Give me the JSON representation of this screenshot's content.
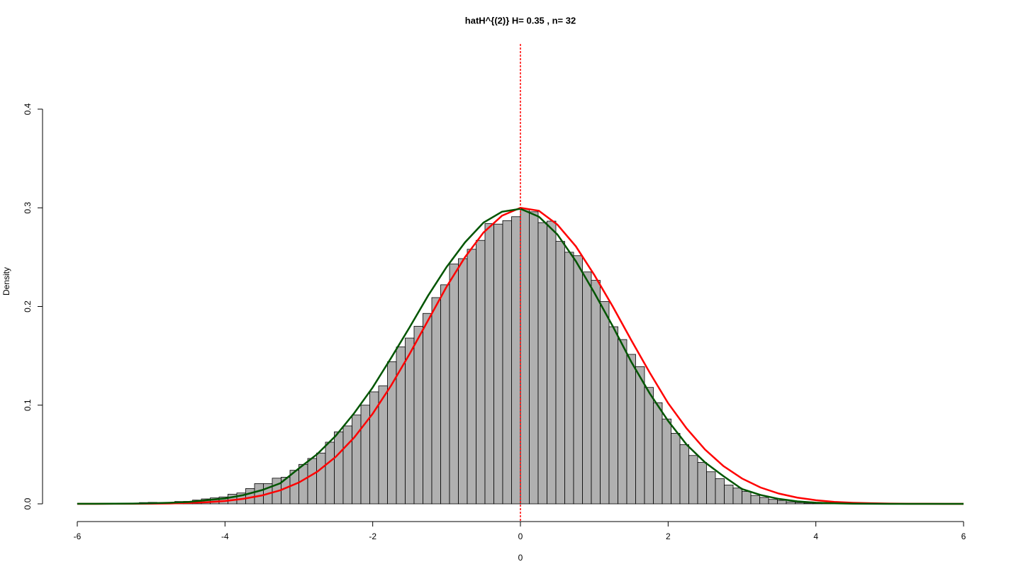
{
  "chart_data": {
    "type": "histogram",
    "title": "hatH^{(2)} H= 0.35 , n= 32",
    "xlabel": "0",
    "ylabel": "Density",
    "bins": [
      -6,
      -5.88,
      -5.76,
      -5.64,
      -5.52,
      -5.4,
      -5.28,
      -5.16,
      -5.04,
      -4.92,
      -4.8,
      -4.68,
      -4.56,
      -4.44,
      -4.32,
      -4.2,
      -4.08,
      -3.96,
      -3.84,
      -3.72,
      -3.6,
      -3.48,
      -3.36,
      -3.24,
      -3.12,
      -3,
      -2.88,
      -2.76,
      -2.64,
      -2.52,
      -2.4,
      -2.28,
      -2.16,
      -2.04,
      -1.92,
      -1.8,
      -1.68,
      -1.56,
      -1.44,
      -1.32,
      -1.2,
      -1.08,
      -0.96,
      -0.84,
      -0.72,
      -0.6,
      -0.48,
      -0.36,
      -0.24,
      -0.12,
      0,
      0.12,
      0.24,
      0.36,
      0.48,
      0.6,
      0.72,
      0.84,
      0.96,
      1.08,
      1.2,
      1.32,
      1.44,
      1.56,
      1.68,
      1.8,
      1.92,
      2.04,
      2.16,
      2.28,
      2.4,
      2.52,
      2.64,
      2.76,
      2.88,
      3,
      3.12,
      3.24,
      3.36,
      3.48,
      3.6,
      3.72,
      3.84,
      3.96,
      4.08,
      4.2,
      4.32,
      4.44,
      4.56,
      4.68,
      4.8,
      4.92,
      5.04,
      5.16,
      5.28,
      5.4,
      5.52,
      5.64,
      5.76,
      5.88,
      6
    ],
    "values": [
      0.0001,
      0.0001,
      0.0001,
      0.0002,
      0.0003,
      0.0004,
      0.0005,
      0.0013,
      0.0015,
      0.0012,
      0.0015,
      0.0024,
      0.0025,
      0.0038,
      0.005,
      0.006,
      0.007,
      0.0098,
      0.011,
      0.0155,
      0.0205,
      0.0205,
      0.026,
      0.027,
      0.034,
      0.04,
      0.046,
      0.0515,
      0.0625,
      0.073,
      0.079,
      0.09,
      0.1,
      0.1135,
      0.1195,
      0.144,
      0.159,
      0.168,
      0.18,
      0.193,
      0.209,
      0.222,
      0.243,
      0.2485,
      0.258,
      0.267,
      0.284,
      0.2835,
      0.287,
      0.291,
      0.299,
      0.296,
      0.285,
      0.2865,
      0.266,
      0.255,
      0.2515,
      0.235,
      0.2265,
      0.205,
      0.1795,
      0.1665,
      0.1515,
      0.139,
      0.118,
      0.1025,
      0.086,
      0.0715,
      0.06,
      0.049,
      0.042,
      0.0325,
      0.0255,
      0.019,
      0.016,
      0.0125,
      0.0085,
      0.0065,
      0.0045,
      0.0035,
      0.002,
      0.0013,
      0.0007,
      0.0004,
      0.0002,
      0.0001,
      0.0001,
      0.0001,
      0.0001,
      0.0001,
      0,
      0,
      0,
      0,
      0,
      0,
      0,
      0,
      0,
      0
    ],
    "color": "#b0b0b0",
    "curve_x": [
      -6,
      -5.75,
      -5.5,
      -5.25,
      -5,
      -4.75,
      -4.5,
      -4.25,
      -4,
      -3.75,
      -3.5,
      -3.25,
      -3,
      -2.75,
      -2.5,
      -2.25,
      -2,
      -1.75,
      -1.5,
      -1.25,
      -1,
      -0.75,
      -0.5,
      -0.25,
      0,
      0.25,
      0.5,
      0.75,
      1,
      1.25,
      1.5,
      1.75,
      2,
      2.25,
      2.5,
      2.75,
      3,
      3.25,
      3.5,
      3.75,
      4,
      4.25,
      4.5,
      4.75,
      5,
      5.25,
      5.5,
      5.75,
      6
    ],
    "curves": [
      {
        "color": "#ff0000",
        "values": [
          1e-05,
          2e-05,
          5e-05,
          0.0001,
          0.0002,
          0.0004,
          0.0009,
          0.0016,
          0.0029,
          0.0051,
          0.0085,
          0.0138,
          0.0216,
          0.0326,
          0.0477,
          0.0673,
          0.0914,
          0.12,
          0.152,
          0.186,
          0.22,
          0.25,
          0.275,
          0.292,
          0.3,
          0.297,
          0.283,
          0.261,
          0.232,
          0.2,
          0.166,
          0.133,
          0.102,
          0.0764,
          0.055,
          0.0382,
          0.0257,
          0.0166,
          0.0104,
          0.0063,
          0.0037,
          0.002,
          0.0011,
          0.0006,
          0.0003,
          0.0001,
          0.0001,
          3e-05,
          1e-05
        ]
      },
      {
        "color": "#005500",
        "values": [
          5e-05,
          8e-05,
          0.00016,
          0.0003,
          0.0006,
          0.0011,
          0.0019,
          0.0037,
          0.0055,
          0.0089,
          0.0139,
          0.0209,
          0.0359,
          0.0505,
          0.069,
          0.092,
          0.118,
          0.148,
          0.179,
          0.211,
          0.24,
          0.265,
          0.285,
          0.296,
          0.299,
          0.291,
          0.273,
          0.246,
          0.214,
          0.18,
          0.144,
          0.112,
          0.084,
          0.06,
          0.042,
          0.028,
          0.015,
          0.009,
          0.005,
          0.0025,
          0.0012,
          0.0005,
          0.0002,
          0.0001,
          0,
          0,
          0,
          0,
          0
        ]
      }
    ],
    "vline": {
      "x": 0,
      "color": "#ff0000"
    },
    "xlim": [
      -6,
      6
    ],
    "ylim": [
      0,
      0.4
    ],
    "xticks": [
      -6,
      -4,
      -2,
      0,
      2,
      4,
      6
    ],
    "yticks": [
      {
        "value": 0,
        "label": "0.0"
      },
      0.1,
      0.2,
      0.3,
      0.4
    ]
  }
}
